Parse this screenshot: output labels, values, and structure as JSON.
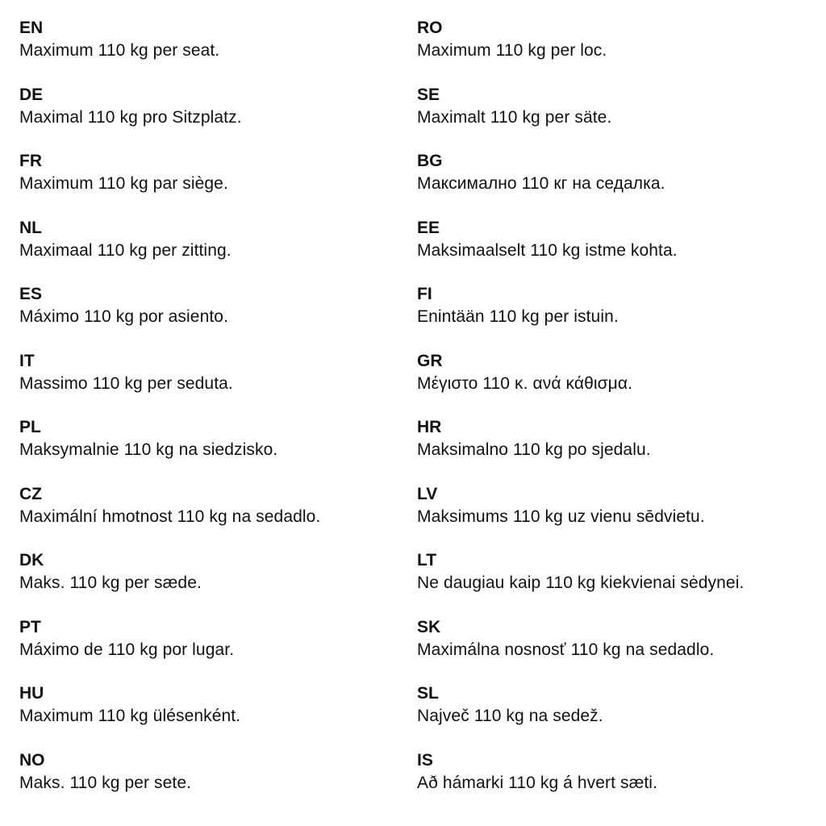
{
  "left_column": [
    {
      "code": "EN",
      "text": "Maximum 110 kg per seat."
    },
    {
      "code": "DE",
      "text": "Maximal 110 kg pro Sitzplatz."
    },
    {
      "code": "FR",
      "text": "Maximum 110 kg par siège."
    },
    {
      "code": "NL",
      "text": "Maximaal 110 kg per zitting."
    },
    {
      "code": "ES",
      "text": "Máximo 110 kg por asiento."
    },
    {
      "code": "IT",
      "text": "Massimo 110 kg per seduta."
    },
    {
      "code": "PL",
      "text": "Maksymalnie 110 kg na siedzisko."
    },
    {
      "code": "CZ",
      "text": "Maximální hmotnost 110 kg na sedadlo."
    },
    {
      "code": "DK",
      "text": "Maks. 110 kg per sæde."
    },
    {
      "code": "PT",
      "text": "Máximo de 110 kg por lugar."
    },
    {
      "code": "HU",
      "text": "Maximum 110 kg ülésenként."
    },
    {
      "code": "NO",
      "text": "Maks. 110 kg per sete."
    }
  ],
  "right_column": [
    {
      "code": "RO",
      "text": "Maximum 110 kg per loc."
    },
    {
      "code": "SE",
      "text": "Maximalt 110 kg per säte."
    },
    {
      "code": "BG",
      "text": "Максимално 110 кг на седалка."
    },
    {
      "code": "EE",
      "text": "Maksimaalselt 110 kg istme kohta."
    },
    {
      "code": "FI",
      "text": "Enintään 110 kg per istuin."
    },
    {
      "code": "GR",
      "text": "Μέγιστο 110 κ. ανά κάθισμα."
    },
    {
      "code": "HR",
      "text": "Maksimalno 110 kg po sjedalu."
    },
    {
      "code": "LV",
      "text": "Maksimums 110 kg uz vienu sēdvietu."
    },
    {
      "code": "LT",
      "text": "Ne daugiau kaip 110 kg kiekvienai sėdynei."
    },
    {
      "code": "SK",
      "text": "Maximálna nosnosť 110 kg na sedadlo."
    },
    {
      "code": "SL",
      "text": "Največ 110 kg na sedež."
    },
    {
      "code": "IS",
      "text": "Að hámarki 110 kg á hvert sæti."
    }
  ]
}
